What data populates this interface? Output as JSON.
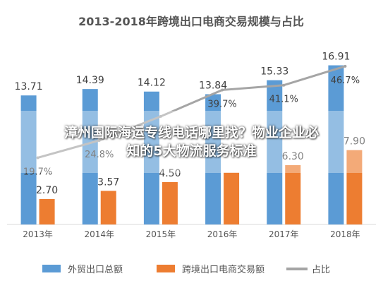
{
  "chart_data": {
    "type": "bar",
    "title": "2013-2018年跨境出口电商交易规模与占比",
    "categories": [
      "2013年",
      "2014年",
      "2015年",
      "2016年",
      "2017年",
      "2018年"
    ],
    "series": [
      {
        "name": "外贸出口总额",
        "kind": "bar",
        "color": "#5b9bd5",
        "values": [
          13.71,
          14.39,
          14.12,
          13.84,
          15.33,
          16.91
        ],
        "labels": [
          "13.71",
          "14.39",
          "14.12",
          "13.84",
          "15.33",
          "16.91"
        ]
      },
      {
        "name": "跨境出口电商交易额",
        "kind": "bar",
        "color": "#ed7d31",
        "values": [
          2.7,
          3.57,
          4.5,
          5.5,
          6.3,
          7.9
        ],
        "labels": [
          "2.70",
          "3.57",
          "4.50",
          "",
          "6.30",
          "7.90"
        ]
      },
      {
        "name": "占比",
        "kind": "line",
        "color": "#a5a5a5",
        "values": [
          19.7,
          24.8,
          31.9,
          39.7,
          41.1,
          46.7
        ],
        "labels": [
          "19.7%",
          "24.8%",
          "",
          "39.7%",
          "41.1%",
          "46.7%"
        ]
      }
    ],
    "ylim": [
      0,
      18
    ],
    "y2lim": [
      0,
      50
    ],
    "grid": false,
    "legend_position": "bottom"
  },
  "overlay": {
    "line1": "漳州国际海运专线电话哪里找？物业企业必",
    "line2": "知的5大物流服务标准"
  }
}
